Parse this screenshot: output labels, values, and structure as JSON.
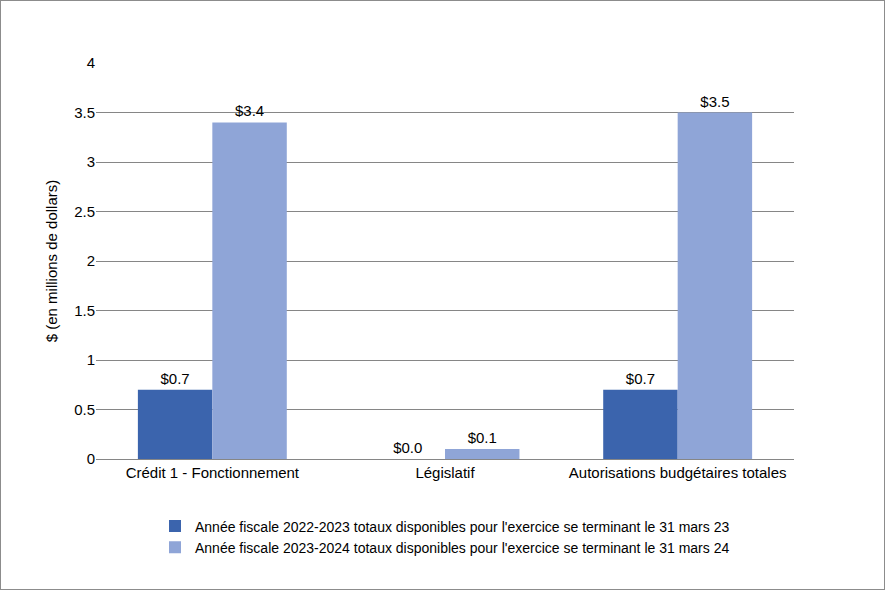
{
  "chart_data": {
    "type": "bar",
    "categories": [
      "Crédit 1 - Fonctionnement",
      "Législatif",
      "Autorisations budgétaires totales"
    ],
    "y_label": "$ (en millions de dollars)",
    "series": [
      {
        "name": "Année fiscale 2022-2023 totaux disponibles pour l'exercice se terminant le 31 mars 23",
        "color": "#3b64ad",
        "values": [
          0.7,
          0.0,
          0.7
        ],
        "value_labels": [
          "$0.7",
          "$0.0",
          "$0.7"
        ]
      },
      {
        "name": "Année fiscale 2023-2024 totaux disponibles pour l'exercice se terminant le 31 mars 24",
        "color": "#8fa5d7",
        "values": [
          3.4,
          0.1,
          3.5
        ],
        "value_labels": [
          "$3.4",
          "$0.1",
          "$3.5"
        ]
      }
    ],
    "ylim": [
      0,
      4
    ],
    "yticks": [
      0,
      0.5,
      1,
      1.5,
      2,
      2.5,
      3,
      3.5,
      4
    ],
    "grid": true,
    "legend": "bottom",
    "data_labels": true
  }
}
